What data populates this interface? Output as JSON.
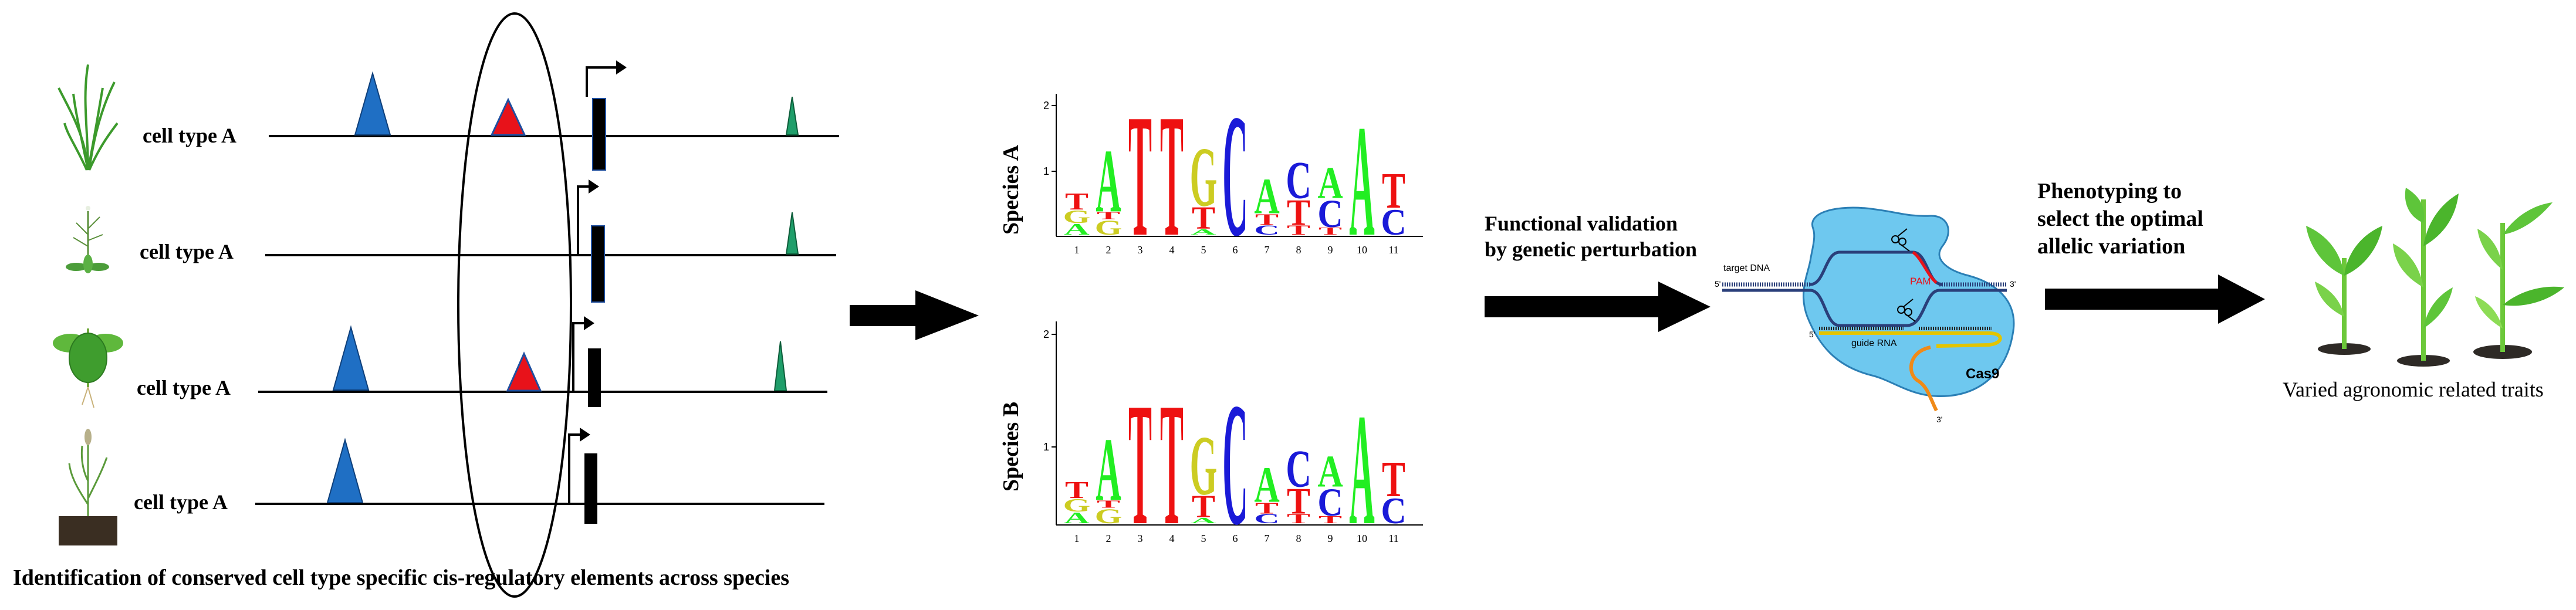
{
  "panel1": {
    "rows": [
      {
        "label": "cell type A"
      },
      {
        "label": "cell type A"
      },
      {
        "label": "cell type A"
      },
      {
        "label": "cell type A"
      }
    ],
    "caption": "Identification of conserved cell type specific cis-regulatory elements across species"
  },
  "panel2": {
    "logos": [
      {
        "species": "Species A",
        "positions": [
          "1",
          "2",
          "3",
          "4",
          "5",
          "6",
          "7",
          "8",
          "9",
          "10",
          "11"
        ],
        "yticks": [
          "1",
          "2"
        ]
      },
      {
        "species": "Species B",
        "positions": [
          "1",
          "2",
          "3",
          "4",
          "5",
          "6",
          "7",
          "8",
          "9",
          "10",
          "11"
        ],
        "yticks": [
          "1",
          "2"
        ]
      }
    ]
  },
  "panel3": {
    "title_line1": "Functional validation",
    "title_line2": "by genetic perturbation",
    "target_dna": "target DNA",
    "pam": "PAM",
    "guide_rna": "guide RNA",
    "cas9": "Cas9",
    "five_prime": "5'",
    "three_prime": "3'"
  },
  "panel4": {
    "title_line1": "Phenotyping to",
    "title_line2": "select the optimal",
    "title_line3": "allelic variation",
    "caption": "Varied agronomic related traits"
  },
  "colors": {
    "A": "#22ee22",
    "C": "#1a1ad8",
    "G": "#cccc22",
    "T": "#ee1111",
    "motif_blue": "#1f6fc4",
    "motif_red": "#e8121a",
    "motif_green": "#1f9e6a",
    "cas9_fill": "#6ec8ef",
    "cas9_stroke": "#2b7fb5"
  }
}
